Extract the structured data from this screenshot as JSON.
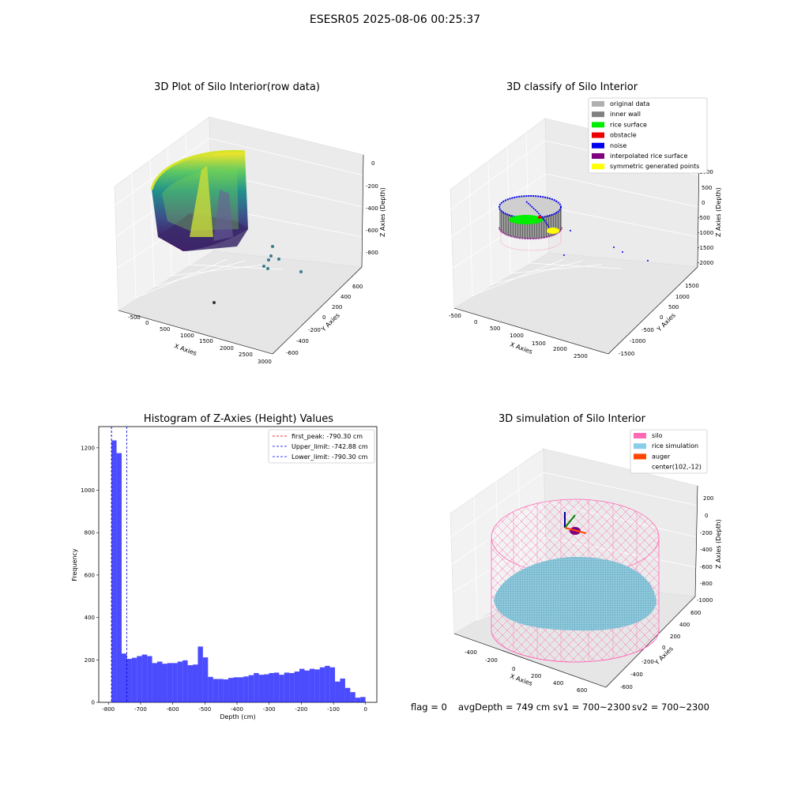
{
  "figure": {
    "title": "ESESR05 2025-08-06 00:25:37"
  },
  "chart_data": [
    {
      "type": "scatter",
      "subtype": "3d",
      "title": "3D Plot of Silo Interior(row data)",
      "xlabel": "X Axies",
      "ylabel": "Y Axies",
      "zlabel": "Z Axies (Depth)",
      "x_ticks": [
        "-500",
        "0",
        "500",
        "1000",
        "1500",
        "2000",
        "2500",
        "3000"
      ],
      "y_ticks": [
        "600",
        "400",
        "200",
        "0",
        "-200",
        "-400",
        "-600"
      ],
      "z_ticks": [
        "0",
        "-200",
        "-400",
        "-600",
        "-800"
      ],
      "colormap": "viridis",
      "outlier_points": [
        {
          "x": 1450,
          "y": 100,
          "z": -850
        },
        {
          "x": 1550,
          "y": 50,
          "z": -860
        },
        {
          "x": 1600,
          "y": 0,
          "z": -870
        },
        {
          "x": 1700,
          "y": -50,
          "z": -870
        },
        {
          "x": 1800,
          "y": -100,
          "z": -880
        },
        {
          "x": 2000,
          "y": -200,
          "z": -900
        },
        {
          "x": 600,
          "y": -500,
          "z": -950
        }
      ]
    },
    {
      "type": "scatter",
      "subtype": "3d",
      "title": "3D classify of Silo Interior",
      "xlabel": "X Axies",
      "ylabel": "Y Axies",
      "zlabel": "Z Axies (Depth)",
      "x_ticks": [
        "-500",
        "0",
        "500",
        "1000",
        "1500",
        "2000",
        "2500"
      ],
      "y_ticks": [
        "1500",
        "1000",
        "500",
        "0",
        "-500",
        "-1000",
        "-1500"
      ],
      "z_ticks": [
        "1000",
        "500",
        "0",
        "-500",
        "-1000",
        "-1500",
        "-2000"
      ],
      "legend": [
        {
          "label": "original data",
          "color": "#b0b0b0"
        },
        {
          "label": "inner wall",
          "color": "#808080"
        },
        {
          "label": "rice surface",
          "color": "#00ee00"
        },
        {
          "label": "obstacle",
          "color": "#ee0000"
        },
        {
          "label": "noise",
          "color": "#0000ee"
        },
        {
          "label": "interpolated rice surface",
          "color": "#800080"
        },
        {
          "label": "symmetric generated points",
          "color": "#ffff00"
        }
      ],
      "legend_placement": "top-right"
    },
    {
      "type": "bar",
      "subtype": "histogram",
      "title": "Histogram of Z-Axies (Height) Values",
      "xlabel": "Depth (cm)",
      "ylabel": "Frequency",
      "xlim": [
        -830,
        35
      ],
      "ylim": [
        0,
        1300
      ],
      "x_ticks": [
        -800,
        -700,
        -600,
        -500,
        -400,
        -300,
        -200,
        -100,
        0
      ],
      "y_ticks": [
        0,
        200,
        400,
        600,
        800,
        1000,
        1200
      ],
      "bin_start": -790.3,
      "bin_width": 15.8,
      "bar_color": "#0000ff",
      "values": [
        1235,
        1175,
        230,
        205,
        210,
        218,
        225,
        218,
        185,
        192,
        182,
        185,
        185,
        192,
        198,
        175,
        178,
        263,
        212,
        120,
        110,
        110,
        108,
        115,
        118,
        118,
        122,
        128,
        138,
        130,
        132,
        138,
        140,
        130,
        140,
        138,
        145,
        158,
        150,
        158,
        155,
        165,
        172,
        165,
        98,
        112,
        68,
        48,
        22,
        25
      ],
      "lines": [
        {
          "label": "first_peak: -790.30 cm",
          "x": -790.3,
          "color": "#dd0000"
        },
        {
          "label": "Upper_limit: -742.88 cm",
          "x": -742.88,
          "color": "#0000dd"
        },
        {
          "label": "Lower_limit: -790.30 cm",
          "x": -790.3,
          "color": "#0000dd"
        }
      ],
      "legend_placement": "top-right"
    },
    {
      "type": "scatter",
      "subtype": "3d",
      "title": "3D simulation of Silo Interior",
      "xlabel": "X Axies",
      "ylabel": "Y Axies",
      "zlabel": "Z Axies (Depth)",
      "x_ticks": [
        "-400",
        "-200",
        "0",
        "200",
        "400",
        "600"
      ],
      "y_ticks": [
        "600",
        "400",
        "200",
        "0",
        "-200",
        "-400",
        "-600"
      ],
      "z_ticks": [
        "200",
        "0",
        "-200",
        "-400",
        "-600",
        "-800",
        "-1000"
      ],
      "legend": [
        {
          "label": "silo",
          "color": "#ff69b4"
        },
        {
          "label": "rice simulation",
          "color": "#87ceeb"
        },
        {
          "label": "auger",
          "color": "#ff4500"
        },
        {
          "label": "center(102,-12)",
          "color": ""
        }
      ],
      "legend_placement": "top-right"
    }
  ],
  "footer": {
    "flag": "flag = 0",
    "avg": "avgDepth = 749 cm",
    "sv1": "sv1 = 700~2300",
    "sv2": "sv2 = 700~2300"
  }
}
